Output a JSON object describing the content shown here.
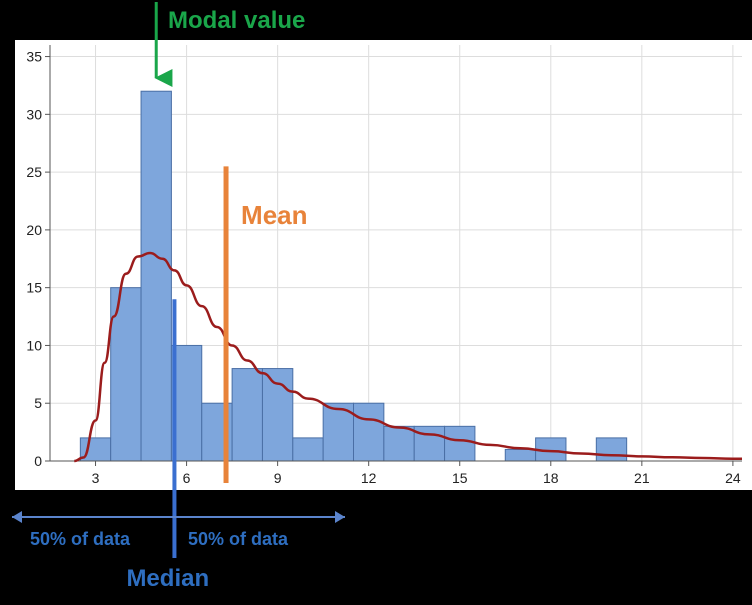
{
  "chart_data": {
    "type": "bar",
    "title": "",
    "xlabel": "",
    "ylabel": "",
    "xlim": [
      1.5,
      24.3
    ],
    "ylim": [
      0,
      36
    ],
    "grid": true,
    "x_ticks": [
      3,
      6,
      9,
      12,
      15,
      18,
      21,
      24
    ],
    "y_ticks": [
      0,
      5,
      10,
      15,
      20,
      25,
      30,
      35
    ],
    "bin_width": 1,
    "bins": [
      {
        "start": 2.5,
        "end": 3.5,
        "count": 2
      },
      {
        "start": 3.5,
        "end": 4.5,
        "count": 15
      },
      {
        "start": 4.5,
        "end": 5.5,
        "count": 32
      },
      {
        "start": 5.5,
        "end": 6.5,
        "count": 10
      },
      {
        "start": 6.5,
        "end": 7.5,
        "count": 5
      },
      {
        "start": 7.5,
        "end": 8.5,
        "count": 8
      },
      {
        "start": 8.5,
        "end": 9.5,
        "count": 8
      },
      {
        "start": 9.5,
        "end": 10.5,
        "count": 2
      },
      {
        "start": 10.5,
        "end": 11.5,
        "count": 5
      },
      {
        "start": 11.5,
        "end": 12.5,
        "count": 5
      },
      {
        "start": 12.5,
        "end": 13.5,
        "count": 3
      },
      {
        "start": 13.5,
        "end": 14.5,
        "count": 3
      },
      {
        "start": 14.5,
        "end": 15.5,
        "count": 3
      },
      {
        "start": 16.5,
        "end": 17.5,
        "count": 1
      },
      {
        "start": 17.5,
        "end": 18.5,
        "count": 2
      },
      {
        "start": 19.5,
        "end": 20.5,
        "count": 2
      }
    ],
    "density_curve": {
      "x": [
        2.3,
        2.6,
        3.0,
        3.3,
        3.6,
        4.0,
        4.4,
        4.8,
        5.2,
        5.6,
        6.0,
        6.5,
        7.0,
        7.5,
        8.0,
        8.5,
        9.0,
        9.5,
        10.0,
        11.0,
        12.0,
        13.0,
        14.0,
        15.0,
        16.0,
        17.0,
        18.0,
        19.0,
        20.0,
        21.0,
        22.0,
        23.0,
        24.0,
        24.3
      ],
      "y": [
        0.0,
        0.3,
        3.5,
        8.5,
        12.5,
        16.2,
        17.7,
        18.0,
        17.5,
        16.5,
        15.2,
        13.4,
        11.6,
        10.0,
        8.7,
        7.6,
        6.7,
        6.0,
        5.4,
        4.5,
        3.6,
        2.9,
        2.3,
        1.8,
        1.4,
        1.1,
        0.85,
        0.65,
        0.5,
        0.4,
        0.32,
        0.26,
        0.2,
        0.2
      ]
    },
    "mean": 7.3,
    "mean_line_top": 25.5,
    "median": 5.6,
    "modal_bin_x": 5.0,
    "annotations": {
      "modal": "Modal value",
      "mean": "Mean",
      "median": "Median",
      "left_half": "50% of data",
      "right_half": "50% of data"
    },
    "colors": {
      "bar_fill": "#7ea6dc",
      "bar_stroke": "#4a6fa5",
      "curve": "#9b1c1c",
      "mean": "#e8833a",
      "median": "#3a6fd0",
      "modal": "#1aa64a",
      "half_arrow": "#5b84cc",
      "half_text": "#2e6ec0",
      "median_text": "#2e6ec0",
      "background": "#000000",
      "plot_bg": "#ffffff",
      "grid": "#dddddd"
    }
  }
}
